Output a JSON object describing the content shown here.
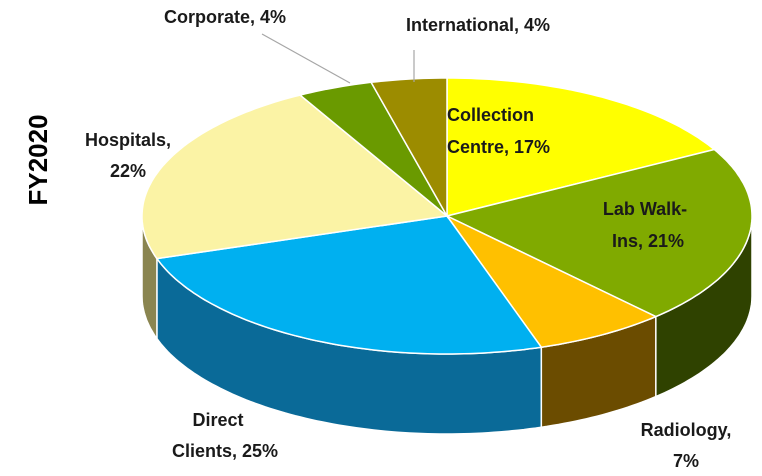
{
  "chart_data": {
    "type": "pie",
    "title": "FY2020",
    "categories": [
      "Collection Centre",
      "Lab Walk-Ins",
      "Radiology",
      "Direct Clients",
      "Hospitals",
      "Corporate",
      "International"
    ],
    "values": [
      17,
      21,
      7,
      25,
      22,
      4,
      4
    ],
    "value_labels": [
      [
        "Collection",
        "Centre, 17%"
      ],
      [
        "Lab Walk-",
        "Ins, 21%"
      ],
      [
        "Radiology,",
        "7%"
      ],
      [
        "Direct",
        "Clients, 25%"
      ],
      [
        "Hospitals,",
        "22%"
      ],
      [
        "Corporate, 4%"
      ],
      [
        "International, 4%"
      ]
    ],
    "colors": [
      "#ffff00",
      "#80aa00",
      "#ffc000",
      "#00b0f0",
      "#fbf3a5",
      "#6a9a00",
      "#9c8c00"
    ],
    "side_colors": [
      "#808000",
      "#2f4200",
      "#6b4c00",
      "#0a6a98",
      "#8a8550",
      "#354d00",
      "#4e4600"
    ]
  }
}
